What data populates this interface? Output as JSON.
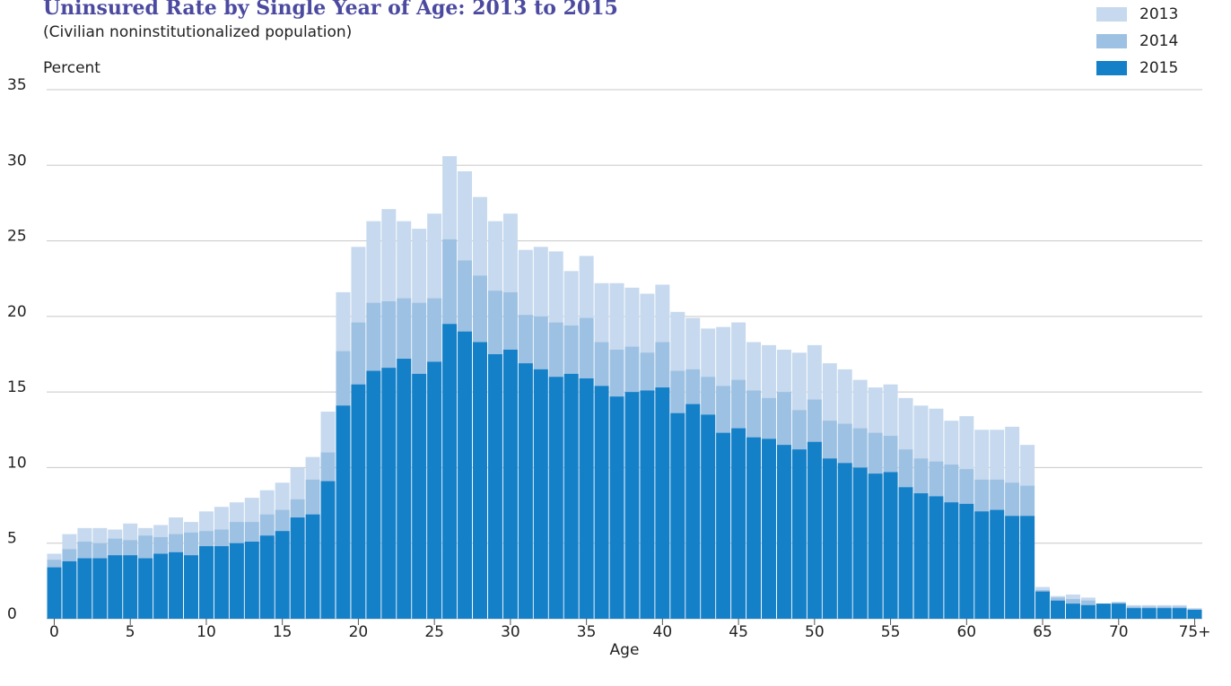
{
  "chart_data": {
    "type": "bar",
    "title": "Uninsured Rate by Single Year of Age: 2013 to 2015",
    "subtitle": "(Civilian noninstitutionalized population)",
    "y_label": "Percent",
    "x_label": "Age",
    "categories": [
      "0",
      null,
      null,
      null,
      null,
      "5",
      null,
      null,
      null,
      null,
      "10",
      null,
      null,
      null,
      null,
      "15",
      null,
      null,
      null,
      null,
      "20",
      null,
      null,
      null,
      null,
      "25",
      null,
      null,
      null,
      null,
      "30",
      null,
      null,
      null,
      null,
      "35",
      null,
      null,
      null,
      null,
      "40",
      null,
      null,
      null,
      null,
      "45",
      null,
      null,
      null,
      null,
      "50",
      null,
      null,
      null,
      null,
      "55",
      null,
      null,
      null,
      null,
      "60",
      null,
      null,
      null,
      null,
      "65",
      null,
      null,
      null,
      null,
      "70",
      null,
      null,
      null,
      null,
      "75+"
    ],
    "series": [
      {
        "name": "2013",
        "color": "#c6d9ee",
        "values": [
          4.3,
          5.6,
          6.0,
          6.0,
          5.9,
          6.3,
          6.0,
          6.2,
          6.7,
          6.4,
          7.1,
          7.4,
          7.7,
          8.0,
          8.5,
          9.0,
          10.0,
          10.7,
          13.7,
          21.6,
          24.6,
          26.3,
          27.1,
          26.3,
          25.8,
          26.8,
          30.6,
          29.6,
          27.9,
          26.3,
          26.8,
          24.4,
          24.6,
          24.3,
          23.0,
          24.0,
          22.2,
          22.2,
          21.9,
          21.5,
          22.1,
          20.3,
          19.9,
          19.2,
          19.3,
          19.6,
          18.3,
          18.1,
          17.8,
          17.6,
          18.1,
          16.9,
          16.5,
          15.8,
          15.3,
          15.5,
          14.6,
          14.1,
          13.9,
          13.1,
          13.4,
          12.5,
          12.5,
          12.7,
          11.5,
          2.1,
          1.5,
          1.6,
          1.4,
          1.0,
          1.1,
          0.9,
          0.9,
          0.9,
          0.9,
          0.7
        ]
      },
      {
        "name": "2014",
        "color": "#9dc1e3",
        "values": [
          3.9,
          4.6,
          5.1,
          5.0,
          5.3,
          5.2,
          5.5,
          5.4,
          5.6,
          5.7,
          5.8,
          5.9,
          6.4,
          6.4,
          6.9,
          7.2,
          7.9,
          9.2,
          11.0,
          17.7,
          19.6,
          20.9,
          21.0,
          21.2,
          20.9,
          21.2,
          25.1,
          23.7,
          22.7,
          21.7,
          21.6,
          20.1,
          20.0,
          19.6,
          19.4,
          19.9,
          18.3,
          17.8,
          18.0,
          17.6,
          18.3,
          16.4,
          16.5,
          16.0,
          15.4,
          15.8,
          15.1,
          14.6,
          15.0,
          13.8,
          14.5,
          13.1,
          12.9,
          12.6,
          12.3,
          12.1,
          11.2,
          10.6,
          10.4,
          10.2,
          9.9,
          9.2,
          9.2,
          9.0,
          8.8,
          1.9,
          1.4,
          1.3,
          1.2,
          1.0,
          1.1,
          0.8,
          0.8,
          0.8,
          0.8,
          0.6
        ]
      },
      {
        "name": "2015",
        "color": "#1480c8",
        "values": [
          3.4,
          3.8,
          4.0,
          4.0,
          4.2,
          4.2,
          4.0,
          4.3,
          4.4,
          4.2,
          4.8,
          4.8,
          5.0,
          5.1,
          5.5,
          5.8,
          6.7,
          6.9,
          9.1,
          14.1,
          15.5,
          16.4,
          16.6,
          17.2,
          16.2,
          17.0,
          19.5,
          19.0,
          18.3,
          17.5,
          17.8,
          16.9,
          16.5,
          16.0,
          16.2,
          15.9,
          15.4,
          14.7,
          15.0,
          15.1,
          15.3,
          13.6,
          14.2,
          13.5,
          12.3,
          12.6,
          12.0,
          11.9,
          11.5,
          11.2,
          11.7,
          10.6,
          10.3,
          10.0,
          9.6,
          9.7,
          8.7,
          8.3,
          8.1,
          7.7,
          7.6,
          7.1,
          7.2,
          6.8,
          6.8,
          1.8,
          1.2,
          1.0,
          0.9,
          1.0,
          1.0,
          0.7,
          0.7,
          0.7,
          0.7,
          0.6
        ]
      }
    ],
    "ylim": [
      0,
      35
    ],
    "yticks": [
      0,
      5,
      10,
      15,
      20,
      25,
      30,
      35
    ],
    "grid": true,
    "legend": "top-right"
  }
}
